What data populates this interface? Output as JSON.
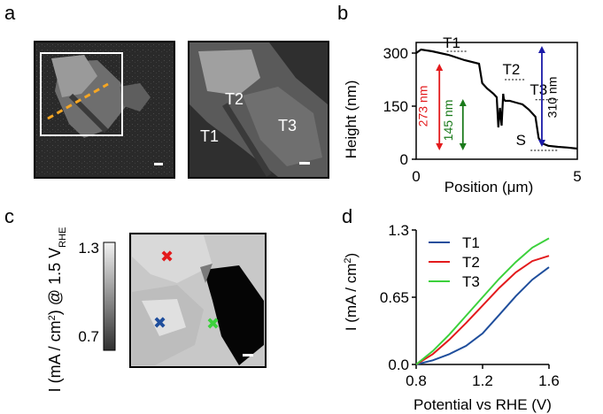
{
  "panels": {
    "a": "a",
    "b": "b",
    "c": "c",
    "d": "d"
  },
  "panel_a": {
    "labels": {
      "t1": "T1",
      "t2": "T2",
      "t3": "T3"
    }
  },
  "panel_c": {
    "colorbar_max": "1.3",
    "colorbar_min": "0.7",
    "ylabel_prefix": "I (mA / cm",
    "ylabel_sup": "2",
    "ylabel_mid": ") @ 1.5 V",
    "ylabel_sub": "RHE",
    "marker_colors": {
      "t1": "#1f4e9c",
      "t2": "#e31a1c",
      "t3": "#3cd13c"
    }
  },
  "chart_data": [
    {
      "type": "line",
      "panel": "b",
      "xlabel": "Position (μm)",
      "ylabel": "Height (nm)",
      "xlim": [
        0,
        5
      ],
      "ylim": [
        0,
        330
      ],
      "xticks": [
        "0",
        "5"
      ],
      "yticks": [
        "0",
        "150",
        "300"
      ],
      "series": [
        {
          "name": "profile",
          "x": [
            0,
            0.15,
            0.5,
            1.0,
            1.5,
            1.95,
            2.05,
            2.2,
            2.4,
            2.5,
            2.55,
            2.6,
            2.65,
            2.7,
            2.72,
            2.76,
            2.9,
            3.1,
            3.3,
            3.5,
            3.7,
            3.8,
            3.9,
            4.1,
            4.4,
            4.7,
            5.0
          ],
          "y": [
            300,
            310,
            305,
            295,
            280,
            270,
            215,
            200,
            185,
            175,
            90,
            145,
            95,
            185,
            170,
            165,
            165,
            160,
            155,
            140,
            120,
            60,
            45,
            38,
            35,
            33,
            30
          ]
        }
      ],
      "annotations": [
        {
          "text": "T1",
          "x": 1.1,
          "y": 315
        },
        {
          "text": "T2",
          "x": 2.95,
          "y": 240
        },
        {
          "text": "T3",
          "x": 3.8,
          "y": 183
        },
        {
          "text": "S",
          "x": 3.25,
          "y": 40
        },
        {
          "text": "273 nm",
          "color": "#e31a1c"
        },
        {
          "text": "145 nm",
          "color": "#1a7a1a"
        },
        {
          "text": "310 nm",
          "color": "#1a1aa8"
        }
      ]
    },
    {
      "type": "line",
      "panel": "d",
      "xlabel": "Potential vs RHE (V)",
      "ylabel_prefix": "I (mA / cm",
      "ylabel_sup": "2",
      "ylabel_suffix": ")",
      "xlim": [
        0.8,
        1.6
      ],
      "ylim": [
        0,
        1.3
      ],
      "xticks": [
        "0.8",
        "1.2",
        "1.6"
      ],
      "yticks": [
        "0.0",
        "0.65",
        "1.3"
      ],
      "x": [
        0.8,
        0.9,
        1.0,
        1.1,
        1.2,
        1.3,
        1.4,
        1.5,
        1.6
      ],
      "series": [
        {
          "name": "T1",
          "color": "#1f4e9c",
          "values": [
            0.0,
            0.04,
            0.1,
            0.18,
            0.3,
            0.48,
            0.66,
            0.82,
            0.94
          ]
        },
        {
          "name": "T2",
          "color": "#e31a1c",
          "values": [
            0.0,
            0.1,
            0.24,
            0.4,
            0.57,
            0.74,
            0.89,
            1.0,
            1.05
          ]
        },
        {
          "name": "T3",
          "color": "#3cd13c",
          "values": [
            0.0,
            0.13,
            0.29,
            0.47,
            0.65,
            0.83,
            0.99,
            1.13,
            1.22
          ]
        }
      ]
    }
  ]
}
